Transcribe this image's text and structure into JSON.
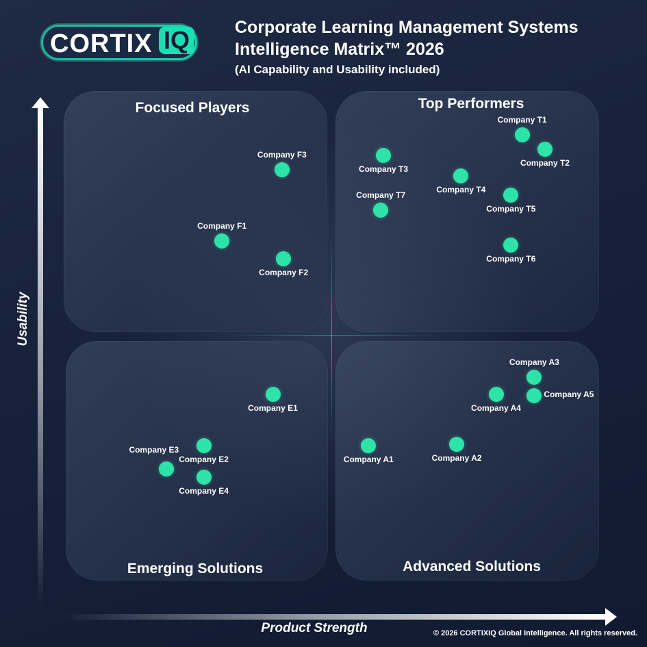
{
  "logo": {
    "word": "CORTIX",
    "badge": "IQ"
  },
  "header": {
    "title_line1": "Corporate Learning Management Systems",
    "title_line2": "Intelligence Matrix™ 2026",
    "subtitle": "(AI Capability and Usability included)"
  },
  "footer": {
    "copyright": "© 2026 CORTIXIQ Global Intelligence. All rights reserved."
  },
  "colors": {
    "point": "#2ee3a8",
    "accent": "#19e0b3",
    "background": "#17213a"
  },
  "chart_data": {
    "type": "scatter",
    "xlabel": "Product Strength",
    "ylabel": "Usability",
    "xlim": [
      0,
      100
    ],
    "ylim": [
      0,
      100
    ],
    "grid": false,
    "quadrants": [
      {
        "id": "focused",
        "title": "Focused Players"
      },
      {
        "id": "top",
        "title": "Top Performers"
      },
      {
        "id": "emerging",
        "title": "Emerging Solutions"
      },
      {
        "id": "advanced",
        "title": "Advanced Solutions"
      }
    ],
    "points": [
      {
        "name": "Company F3",
        "x": 40.7,
        "y": 82.8,
        "label_side": "above"
      },
      {
        "name": "Company F1",
        "x": 29.4,
        "y": 68.8,
        "label_side": "above"
      },
      {
        "name": "Company F2",
        "x": 41.0,
        "y": 65.2,
        "label_side": "below"
      },
      {
        "name": "Company T1",
        "x": 85.9,
        "y": 89.6,
        "label_side": "above"
      },
      {
        "name": "Company T2",
        "x": 90.2,
        "y": 86.8,
        "label_side": "below"
      },
      {
        "name": "Company T3",
        "x": 59.8,
        "y": 85.6,
        "label_side": "below"
      },
      {
        "name": "Company T4",
        "x": 74.4,
        "y": 81.6,
        "label_side": "below"
      },
      {
        "name": "Company T5",
        "x": 83.8,
        "y": 77.7,
        "label_side": "below"
      },
      {
        "name": "Company T7",
        "x": 59.3,
        "y": 74.8,
        "label_side": "above"
      },
      {
        "name": "Company T6",
        "x": 83.8,
        "y": 67.9,
        "label_side": "below"
      },
      {
        "name": "Company E1",
        "x": 39.0,
        "y": 38.5,
        "label_side": "below"
      },
      {
        "name": "Company E2",
        "x": 26.0,
        "y": 28.5,
        "label_side": "below"
      },
      {
        "name": "Company E3",
        "x": 19.0,
        "y": 23.8,
        "label_side": "above-left"
      },
      {
        "name": "Company E4",
        "x": 26.0,
        "y": 22.2,
        "label_side": "below"
      },
      {
        "name": "Company A3",
        "x": 88.2,
        "y": 41.9,
        "label_side": "above"
      },
      {
        "name": "Company A5",
        "x": 88.2,
        "y": 38.3,
        "label_side": "right"
      },
      {
        "name": "Company A4",
        "x": 81.0,
        "y": 38.6,
        "label_side": "below"
      },
      {
        "name": "Company A1",
        "x": 57.0,
        "y": 28.5,
        "label_side": "below"
      },
      {
        "name": "Company A2",
        "x": 73.6,
        "y": 28.7,
        "label_side": "below"
      }
    ]
  }
}
